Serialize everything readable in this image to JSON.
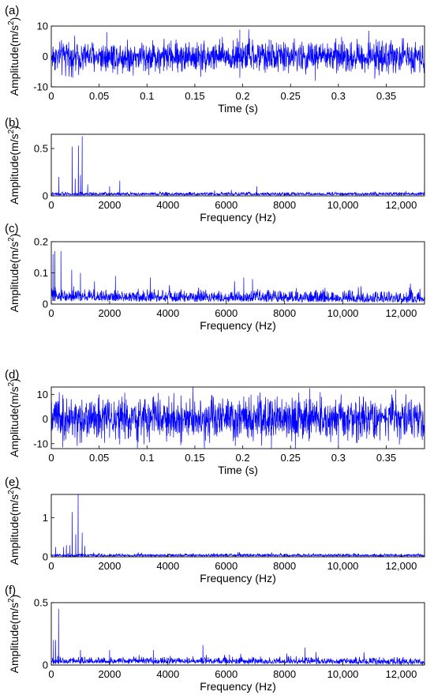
{
  "chart_data": [
    {
      "type": "line",
      "panel": "(a)",
      "xlabel": "Time (s)",
      "ylabel": "Amplitude(m/s²)",
      "ylabel_base": "Amplitude(m/s",
      "ylabel_sup": "2",
      "ylabel_tail": ")",
      "xlim": [
        0,
        0.39
      ],
      "ylim": [
        -10,
        10
      ],
      "xticks": [
        0,
        0.05,
        0.1,
        0.15,
        0.2,
        0.25,
        0.3,
        0.35
      ],
      "xtick_labels": [
        "0",
        "0.05",
        "0.1",
        "0.15",
        "0.2",
        "0.25",
        "0.3",
        "0.35"
      ],
      "yticks": [
        -10,
        0,
        10
      ],
      "ytick_labels": [
        "-10",
        "0",
        "10"
      ],
      "series": [
        {
          "kind": "time",
          "color": "#0000ff",
          "rms": 2.5,
          "peak": 9.0,
          "spikes": [
            {
              "x": 0.058,
              "y": 8.0
            },
            {
              "x": 0.197,
              "y": 8.8
            },
            {
              "x": 0.197,
              "y": -7.0
            },
            {
              "x": 0.276,
              "y": -8.0
            },
            {
              "x": 0.338,
              "y": -7.3
            },
            {
              "x": 0.015,
              "y": -6.5
            }
          ]
        }
      ]
    },
    {
      "type": "line",
      "panel": "(b)",
      "xlabel": "Frequency (Hz)",
      "ylabel": "Amplitude(m/s²)",
      "ylabel_base": "Amplitude(m/s",
      "ylabel_sup": "2",
      "ylabel_tail": ")",
      "xlim": [
        0,
        12800
      ],
      "ylim": [
        0,
        0.65
      ],
      "xticks": [
        0,
        2000,
        4000,
        6000,
        8000,
        10000,
        12000
      ],
      "xtick_labels": [
        "0",
        "2000",
        "4000",
        "6000",
        "8000",
        "10,000",
        "12,000"
      ],
      "yticks": [
        0,
        0.5
      ],
      "ytick_labels": [
        "0",
        "0.5"
      ],
      "series": [
        {
          "kind": "spectrum",
          "color": "#0000ff",
          "floor": [
            [
              0,
              0.025
            ],
            [
              3000,
              0.03
            ],
            [
              8000,
              0.03
            ],
            [
              12800,
              0.03
            ]
          ],
          "noise": 0.025,
          "peaks": [
            {
              "f": 720,
              "a": 0.52
            },
            {
              "f": 930,
              "a": 0.53
            },
            {
              "f": 1060,
              "a": 0.63
            },
            {
              "f": 1000,
              "a": 0.22
            },
            {
              "f": 260,
              "a": 0.2
            },
            {
              "f": 820,
              "a": 0.18
            },
            {
              "f": 2350,
              "a": 0.16
            },
            {
              "f": 1250,
              "a": 0.12
            },
            {
              "f": 2000,
              "a": 0.1
            },
            {
              "f": 7050,
              "a": 0.1
            }
          ]
        }
      ]
    },
    {
      "type": "line",
      "panel": "(c)",
      "xlabel": "Frequency (Hz)",
      "ylabel": "Amplitude(m/s²)",
      "ylabel_base": "Amplitude(m/s",
      "ylabel_sup": "2",
      "ylabel_tail": ")",
      "xlim": [
        0,
        12800
      ],
      "ylim": [
        0,
        0.2
      ],
      "xticks": [
        0,
        2000,
        4000,
        6000,
        8000,
        10000,
        12000
      ],
      "xtick_labels": [
        "0",
        "2000",
        "4000",
        "6000",
        "8000",
        "10,000",
        "12,000"
      ],
      "yticks": [
        0,
        0.1,
        0.2
      ],
      "ytick_labels": [
        "0",
        "0.1",
        "0.2"
      ],
      "series": [
        {
          "kind": "spectrum",
          "color": "#0000ff",
          "floor": [
            [
              0,
              0.06
            ],
            [
              500,
              0.045
            ],
            [
              2000,
              0.035
            ],
            [
              6000,
              0.03
            ],
            [
              10000,
              0.025
            ],
            [
              11800,
              0.02
            ],
            [
              12800,
              0.008
            ]
          ],
          "noise": 0.028,
          "peaks": [
            {
              "f": 120,
              "a": 0.17
            },
            {
              "f": 330,
              "a": 0.17
            },
            {
              "f": 60,
              "a": 0.16
            },
            {
              "f": 700,
              "a": 0.11
            },
            {
              "f": 1000,
              "a": 0.1
            },
            {
              "f": 2200,
              "a": 0.09
            },
            {
              "f": 3400,
              "a": 0.085
            },
            {
              "f": 6600,
              "a": 0.085
            },
            {
              "f": 6900,
              "a": 0.08
            }
          ]
        }
      ]
    },
    {
      "type": "line",
      "panel": "(d)",
      "xlabel": "Time (s)",
      "ylabel": "Amplitude(m/s²)",
      "ylabel_base": "Amplitude(m/s",
      "ylabel_sup": "2",
      "ylabel_tail": ")",
      "xlim": [
        0,
        0.39
      ],
      "ylim": [
        -12,
        13
      ],
      "xticks": [
        0,
        0.05,
        0.1,
        0.15,
        0.2,
        0.25,
        0.3,
        0.35
      ],
      "xtick_labels": [
        "0",
        "0.05",
        "0.1",
        "0.15",
        "0.2",
        "0.25",
        "0.3",
        "0.35"
      ],
      "yticks": [
        -10,
        0,
        10
      ],
      "ytick_labels": [
        "-10",
        "0",
        "10"
      ],
      "series": [
        {
          "kind": "time",
          "color": "#0000ff",
          "rms": 4.2,
          "peak": 13.0,
          "spikes": [
            {
              "x": 0.012,
              "y": -11.5
            },
            {
              "x": 0.09,
              "y": -12.0
            },
            {
              "x": 0.16,
              "y": -11.8
            },
            {
              "x": 0.23,
              "y": -11.9
            },
            {
              "x": 0.255,
              "y": -12.0
            },
            {
              "x": 0.36,
              "y": 12.0
            },
            {
              "x": 0.3,
              "y": -11.5
            },
            {
              "x": 0.27,
              "y": 12.5
            }
          ]
        }
      ]
    },
    {
      "type": "line",
      "panel": "(e)",
      "xlabel": "Frequency (Hz)",
      "ylabel": "Amplitude(m/s²)",
      "ylabel_base": "Amplitude(m/s",
      "ylabel_sup": "2",
      "ylabel_tail": ")",
      "xlim": [
        0,
        12800
      ],
      "ylim": [
        0,
        1.6
      ],
      "xticks": [
        0,
        2000,
        4000,
        6000,
        8000,
        10000,
        12000
      ],
      "xtick_labels": [
        "0",
        "2000",
        "4000",
        "6000",
        "8000",
        "10,000",
        "12,000"
      ],
      "yticks": [
        0,
        1
      ],
      "ytick_labels": [
        "0",
        "1"
      ],
      "series": [
        {
          "kind": "spectrum",
          "color": "#0000ff",
          "floor": [
            [
              0,
              0.06
            ],
            [
              2000,
              0.05
            ],
            [
              12800,
              0.05
            ]
          ],
          "noise": 0.05,
          "peaks": [
            {
              "f": 920,
              "a": 1.6
            },
            {
              "f": 720,
              "a": 1.15
            },
            {
              "f": 840,
              "a": 0.58
            },
            {
              "f": 1060,
              "a": 0.62
            },
            {
              "f": 640,
              "a": 0.3
            },
            {
              "f": 520,
              "a": 0.3
            },
            {
              "f": 420,
              "a": 0.25
            },
            {
              "f": 150,
              "a": 0.25
            },
            {
              "f": 1150,
              "a": 0.28
            }
          ]
        }
      ]
    },
    {
      "type": "line",
      "panel": "(f)",
      "xlabel": "Frequency (Hz)",
      "ylabel": "Amplitude(m/s²)",
      "ylabel_base": "Amplitude(m/s",
      "ylabel_sup": "2",
      "ylabel_tail": ")",
      "xlim": [
        0,
        12800
      ],
      "ylim": [
        0,
        0.5
      ],
      "xticks": [
        0,
        2000,
        4000,
        6000,
        8000,
        10000,
        12000
      ],
      "xtick_labels": [
        "0",
        "2000",
        "4000",
        "6000",
        "8000",
        "10,000",
        "12,000"
      ],
      "yticks": [
        0,
        0.5
      ],
      "ytick_labels": [
        "0",
        "0.5"
      ],
      "series": [
        {
          "kind": "spectrum",
          "color": "#0000ff",
          "floor": [
            [
              0,
              0.06
            ],
            [
              1000,
              0.05
            ],
            [
              6000,
              0.045
            ],
            [
              10000,
              0.035
            ],
            [
              11800,
              0.025
            ],
            [
              12800,
              0.012
            ]
          ],
          "noise": 0.04,
          "peaks": [
            {
              "f": 250,
              "a": 0.45
            },
            {
              "f": 150,
              "a": 0.2
            },
            {
              "f": 80,
              "a": 0.2
            },
            {
              "f": 1000,
              "a": 0.12
            },
            {
              "f": 2000,
              "a": 0.12
            },
            {
              "f": 5200,
              "a": 0.16
            },
            {
              "f": 8700,
              "a": 0.14
            },
            {
              "f": 3500,
              "a": 0.12
            }
          ]
        }
      ]
    }
  ]
}
